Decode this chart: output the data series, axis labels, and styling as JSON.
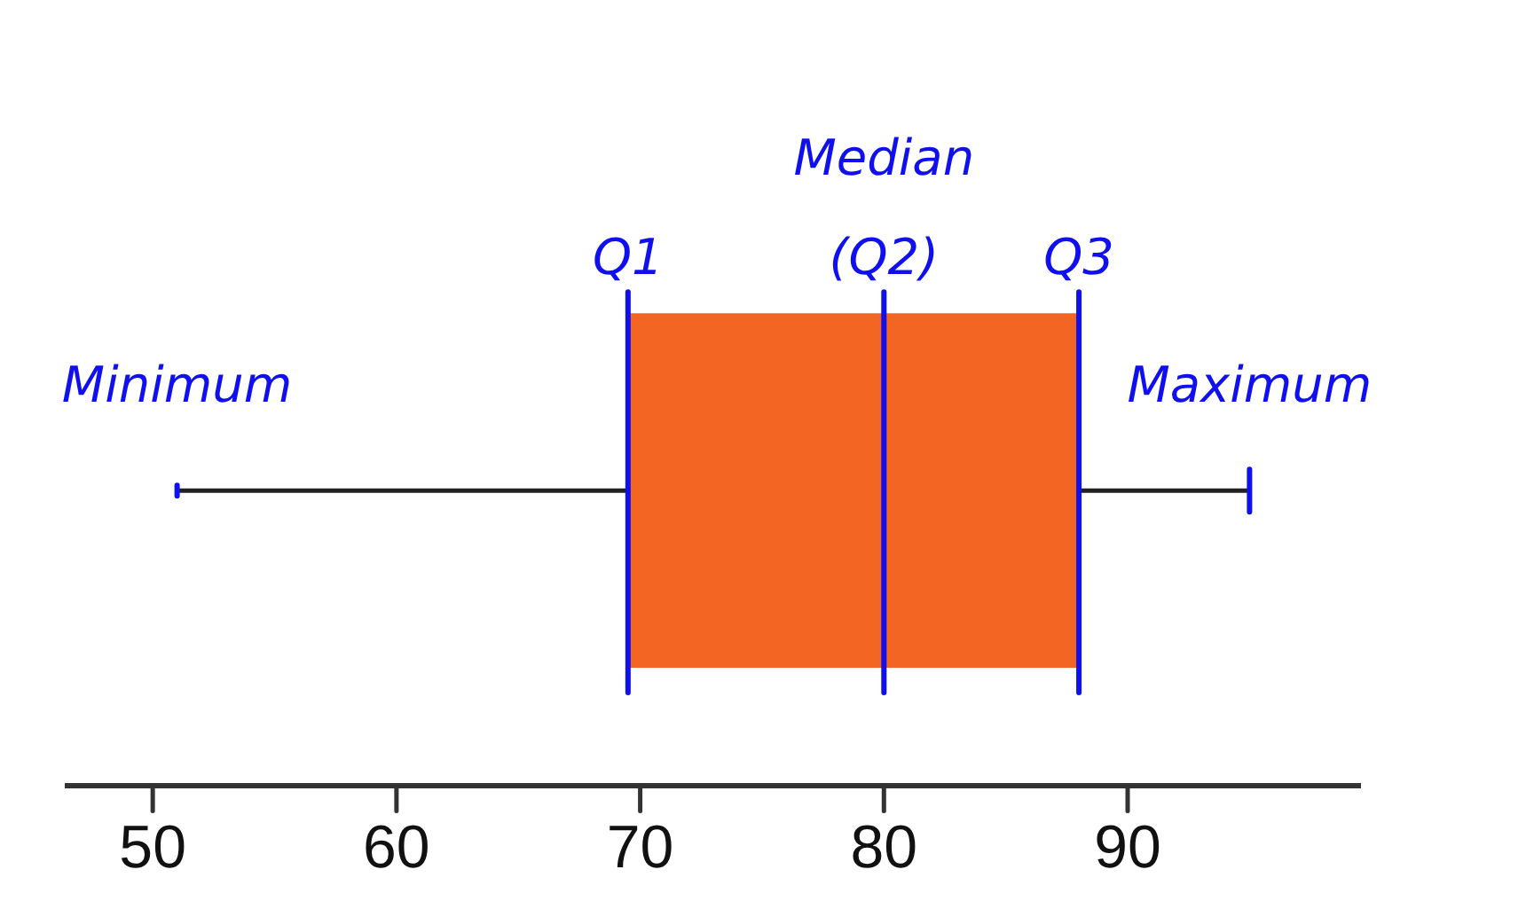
{
  "chart_data": {
    "type": "box",
    "orientation": "horizontal",
    "categories": [
      null
    ],
    "color": "#f26522",
    "boxes": [
      {
        "low": 51,
        "q1": 69.5,
        "median": 80,
        "q3": 88,
        "high": 95
      }
    ],
    "xlim": [
      46.5,
      99.5
    ],
    "xticks": [
      50,
      60,
      70,
      80,
      90
    ],
    "ref_lines": [
      {
        "axis": "x",
        "value": 69.5,
        "label": "Q1",
        "color": "#1010ee"
      },
      {
        "axis": "x",
        "value": 80,
        "label": "Median (Q2)",
        "color": "#1010ee"
      },
      {
        "axis": "x",
        "value": 88,
        "label": "Q3",
        "color": "#1010ee"
      }
    ],
    "annotations": [
      "Minimum",
      "Maximum"
    ]
  }
}
